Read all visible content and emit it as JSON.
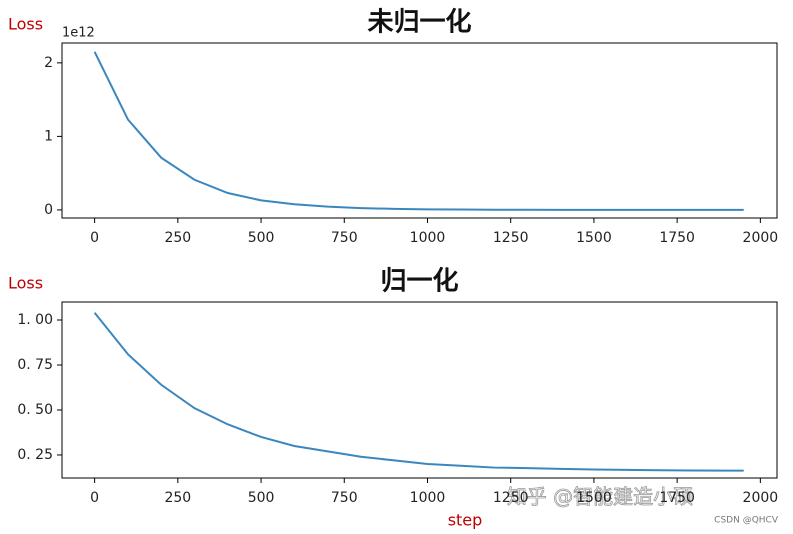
{
  "chart_data": [
    {
      "type": "line",
      "title": "未归一化",
      "y_label": "Loss",
      "offset_label": "1e12",
      "x": [
        0,
        100,
        200,
        300,
        400,
        500,
        600,
        700,
        800,
        900,
        1000,
        1100,
        1200,
        1300,
        1400,
        1500,
        1600,
        1700,
        1800,
        1900,
        1950
      ],
      "series": [
        {
          "color": "#3a87be",
          "values": [
            2.15,
            1.23,
            0.71,
            0.41,
            0.23,
            0.13,
            0.077,
            0.044,
            0.025,
            0.014,
            0.008,
            0.005,
            0.003,
            0.002,
            0.001,
            0.001,
            0,
            0,
            0,
            0,
            0
          ]
        }
      ],
      "xlim": [
        -98,
        2050
      ],
      "xticks": [
        0,
        250,
        500,
        750,
        1000,
        1250,
        1500,
        1750,
        2000
      ],
      "ylim": [
        -0.11,
        2.27
      ],
      "yticks": [
        0,
        1,
        2
      ]
    },
    {
      "type": "line",
      "title": "归一化",
      "y_label": "Loss",
      "x_label": "step",
      "x": [
        0,
        100,
        200,
        300,
        400,
        500,
        600,
        700,
        800,
        900,
        1000,
        1100,
        1200,
        1300,
        1400,
        1500,
        1600,
        1700,
        1800,
        1900,
        1950
      ],
      "series": [
        {
          "color": "#3a87be",
          "values": [
            1.04,
            0.81,
            0.64,
            0.51,
            0.42,
            0.35,
            0.3,
            0.27,
            0.24,
            0.22,
            0.2,
            0.19,
            0.18,
            0.177,
            0.173,
            0.169,
            0.167,
            0.165,
            0.164,
            0.163,
            0.163
          ]
        }
      ],
      "xlim": [
        -98,
        2050
      ],
      "xticks": [
        0,
        250,
        500,
        750,
        1000,
        1250,
        1500,
        1750,
        2000
      ],
      "ylim": [
        0.122,
        1.1
      ],
      "yticks": [
        {
          "value": 0.25,
          "label": "0. 25"
        },
        {
          "value": 0.5,
          "label": "0. 50"
        },
        {
          "value": 0.75,
          "label": "0. 75"
        },
        {
          "value": 1,
          "label": "1. 00"
        }
      ]
    }
  ],
  "watermark": "知乎 @智能建造小硕",
  "credit": "CSDN @QHCV"
}
